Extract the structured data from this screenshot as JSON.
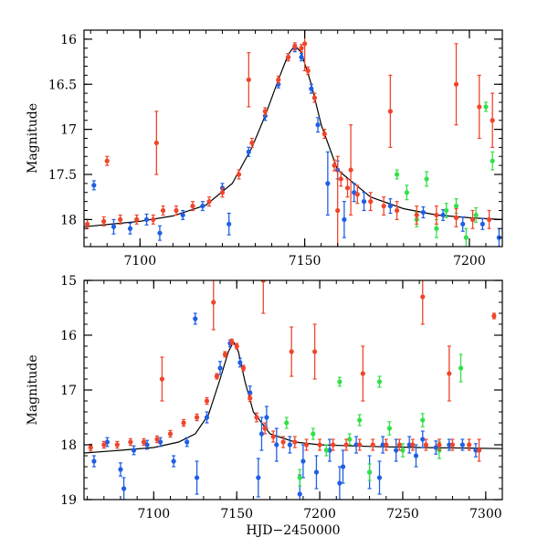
{
  "colors": {
    "blue": "#1f5fe6",
    "red": "#f0452b",
    "green": "#33e04a",
    "model": "#000000",
    "frame": "#000000"
  },
  "chart_data": [
    {
      "type": "scatter",
      "title": "",
      "xlabel": "",
      "ylabel": "Magnitude",
      "xlim": [
        7083,
        7210
      ],
      "ylim": [
        18.3,
        15.9
      ],
      "y_inverted": true,
      "xticks": [
        7100,
        7150,
        7200
      ],
      "xtick_labels": [
        "7100",
        "7150",
        "7200"
      ],
      "yticks": [
        16,
        16.5,
        17,
        17.5,
        18
      ],
      "ytick_labels": [
        "16",
        "16.5",
        "17",
        "17.5",
        "18"
      ],
      "x_minor_step": 5,
      "y_minor_step": 0.1,
      "grid": false,
      "model_curve": {
        "name": "model",
        "color": "model",
        "x": [
          7083,
          7100,
          7110,
          7120,
          7128,
          7134,
          7138,
          7142,
          7145,
          7147,
          7149,
          7152,
          7155,
          7160,
          7170,
          7180,
          7190,
          7200,
          7210
        ],
        "y": [
          18.08,
          18.02,
          17.96,
          17.84,
          17.6,
          17.2,
          16.85,
          16.45,
          16.17,
          16.07,
          16.15,
          16.5,
          16.95,
          17.45,
          17.75,
          17.88,
          17.95,
          17.98,
          18.0
        ]
      },
      "series": [
        {
          "name": "blue",
          "color": "blue",
          "x": [
            7086,
            7092,
            7097,
            7102,
            7106,
            7113,
            7119,
            7125,
            7127,
            7133,
            7138,
            7142,
            7145,
            7147,
            7149,
            7152,
            7154,
            7157,
            7160,
            7162,
            7165,
            7168,
            7176,
            7186,
            7192,
            7198,
            7204,
            7209
          ],
          "y": [
            17.62,
            18.08,
            18.1,
            18.0,
            18.15,
            17.95,
            17.85,
            17.65,
            18.05,
            17.25,
            16.85,
            16.5,
            16.2,
            16.1,
            16.2,
            16.55,
            16.95,
            17.6,
            17.45,
            18.0,
            17.7,
            17.8,
            17.85,
            17.92,
            17.95,
            18.05,
            18.05,
            18.2
          ],
          "yerr": [
            0.05,
            0.08,
            0.06,
            0.06,
            0.08,
            0.05,
            0.05,
            0.05,
            0.12,
            0.05,
            0.05,
            0.04,
            0.04,
            0.04,
            0.04,
            0.05,
            0.08,
            0.35,
            0.1,
            0.2,
            0.1,
            0.1,
            0.08,
            0.06,
            0.06,
            0.08,
            0.06,
            0.1
          ]
        },
        {
          "name": "red",
          "color": "red",
          "x": [
            7084,
            7089,
            7094,
            7099,
            7104,
            7107,
            7111,
            7116,
            7121,
            7125,
            7130,
            7134,
            7138,
            7142,
            7145,
            7147,
            7149,
            7151,
            7153,
            7156,
            7159,
            7161,
            7163,
            7166,
            7170,
            7174,
            7178,
            7184,
            7190,
            7196,
            7201,
            7206,
            7090,
            7105,
            7133,
            7150,
            7160,
            7164,
            7176,
            7196,
            7203,
            7207
          ],
          "y": [
            18.05,
            18.02,
            18.0,
            18.0,
            18.0,
            17.9,
            17.9,
            17.85,
            17.8,
            17.7,
            17.5,
            17.15,
            16.8,
            16.45,
            16.2,
            16.08,
            16.1,
            16.35,
            16.65,
            17.05,
            17.4,
            17.55,
            17.65,
            17.72,
            17.8,
            17.85,
            17.9,
            17.95,
            17.95,
            17.98,
            18.0,
            18.0,
            17.35,
            17.15,
            16.45,
            16.05,
            17.9,
            17.45,
            16.8,
            16.5,
            16.75,
            16.9
          ],
          "yerr": [
            0.05,
            0.05,
            0.05,
            0.05,
            0.05,
            0.05,
            0.05,
            0.05,
            0.05,
            0.05,
            0.05,
            0.05,
            0.04,
            0.04,
            0.04,
            0.04,
            0.04,
            0.04,
            0.05,
            0.05,
            0.06,
            0.08,
            0.1,
            0.1,
            0.1,
            0.1,
            0.1,
            0.1,
            0.1,
            0.1,
            0.1,
            0.1,
            0.05,
            0.35,
            0.3,
            0.3,
            0.6,
            0.5,
            0.4,
            0.45,
            0.35,
            0.3
          ]
        },
        {
          "name": "green",
          "color": "green",
          "x": [
            7178,
            7181,
            7184,
            7187,
            7190,
            7193,
            7196,
            7199,
            7202,
            7205,
            7207
          ],
          "y": [
            17.5,
            17.7,
            18.0,
            17.55,
            18.1,
            17.9,
            17.85,
            18.2,
            17.95,
            16.75,
            17.35
          ],
          "yerr": [
            0.05,
            0.08,
            0.08,
            0.08,
            0.1,
            0.08,
            0.08,
            0.1,
            0.08,
            0.05,
            0.1
          ]
        }
      ]
    },
    {
      "type": "scatter",
      "title": "",
      "xlabel": "HJD−2450000",
      "ylabel": "Magnitude",
      "xlim": [
        7058,
        7310
      ],
      "ylim": [
        19.0,
        15.0
      ],
      "y_inverted": true,
      "xticks": [
        7100,
        7150,
        7200,
        7250,
        7300
      ],
      "xtick_labels": [
        "7100",
        "7150",
        "7200",
        "7250",
        "7300"
      ],
      "yticks": [
        15,
        16,
        17,
        18,
        19
      ],
      "ytick_labels": [
        "15",
        "16",
        "17",
        "18",
        "19"
      ],
      "x_minor_step": 10,
      "y_minor_step": 0.2,
      "grid": false,
      "model_curve": {
        "name": "model",
        "color": "model",
        "x": [
          7058,
          7080,
          7100,
          7115,
          7125,
          7133,
          7140,
          7145,
          7148,
          7151,
          7155,
          7160,
          7170,
          7185,
          7200,
          7230,
          7260,
          7290,
          7310
        ],
        "y": [
          18.15,
          18.1,
          18.05,
          17.95,
          17.8,
          17.45,
          16.8,
          16.3,
          16.12,
          16.3,
          16.85,
          17.4,
          17.8,
          17.95,
          18.0,
          18.03,
          18.05,
          18.06,
          18.07
        ]
      },
      "series": [
        {
          "name": "blue",
          "color": "blue",
          "x": [
            7064,
            7072,
            7080,
            7088,
            7096,
            7104,
            7112,
            7120,
            7125,
            7132,
            7140,
            7146,
            7152,
            7158,
            7163,
            7168,
            7174,
            7182,
            7190,
            7198,
            7206,
            7214,
            7222,
            7230,
            7238,
            7246,
            7254,
            7262,
            7270,
            7278,
            7286,
            7294,
            7082,
            7126,
            7165,
            7188,
            7212,
            7236,
            7258
          ],
          "y": [
            18.3,
            17.95,
            18.45,
            18.1,
            18.0,
            17.95,
            18.3,
            17.95,
            15.7,
            17.5,
            16.6,
            16.15,
            16.5,
            17.05,
            18.6,
            17.5,
            18.0,
            18.0,
            18.3,
            18.5,
            18.1,
            18.4,
            18.0,
            18.5,
            18.0,
            18.1,
            18.0,
            17.9,
            18.05,
            18.0,
            18.0,
            18.1,
            18.8,
            18.6,
            17.8,
            18.9,
            18.7,
            18.6,
            18.2
          ],
          "yerr": [
            0.1,
            0.08,
            0.12,
            0.08,
            0.08,
            0.08,
            0.1,
            0.08,
            0.1,
            0.1,
            0.12,
            0.06,
            0.08,
            0.12,
            0.35,
            0.2,
            0.3,
            0.15,
            0.3,
            0.3,
            0.2,
            0.3,
            0.15,
            0.3,
            0.15,
            0.2,
            0.15,
            0.15,
            0.12,
            0.1,
            0.1,
            0.12,
            0.2,
            0.3,
            0.3,
            0.35,
            0.3,
            0.3,
            0.2
          ]
        },
        {
          "name": "red",
          "color": "red",
          "x": [
            7062,
            7070,
            7078,
            7086,
            7094,
            7102,
            7110,
            7118,
            7126,
            7132,
            7138,
            7143,
            7147,
            7150,
            7154,
            7158,
            7162,
            7167,
            7172,
            7178,
            7185,
            7192,
            7200,
            7208,
            7216,
            7224,
            7232,
            7240,
            7248,
            7256,
            7264,
            7272,
            7280,
            7290,
            7305,
            7105,
            7136,
            7166,
            7183,
            7197,
            7226,
            7262,
            7278,
            7296
          ],
          "y": [
            18.05,
            18.0,
            18.0,
            17.95,
            17.95,
            17.9,
            17.8,
            17.6,
            17.5,
            17.2,
            16.75,
            16.35,
            16.12,
            16.2,
            16.6,
            17.15,
            17.5,
            17.7,
            17.85,
            17.95,
            17.95,
            18.0,
            18.0,
            18.0,
            18.0,
            18.0,
            18.0,
            18.0,
            18.0,
            18.0,
            18.0,
            18.0,
            18.0,
            18.0,
            15.65,
            16.8,
            15.4,
            15.0,
            16.3,
            16.3,
            16.7,
            15.3,
            16.7,
            18.1
          ],
          "yerr": [
            0.06,
            0.06,
            0.06,
            0.06,
            0.06,
            0.06,
            0.06,
            0.06,
            0.06,
            0.06,
            0.05,
            0.05,
            0.05,
            0.05,
            0.05,
            0.06,
            0.08,
            0.1,
            0.1,
            0.1,
            0.1,
            0.1,
            0.1,
            0.1,
            0.1,
            0.1,
            0.1,
            0.1,
            0.1,
            0.1,
            0.1,
            0.1,
            0.1,
            0.1,
            0.05,
            0.4,
            0.5,
            0.6,
            0.45,
            0.5,
            0.5,
            0.5,
            0.5,
            0.2
          ]
        },
        {
          "name": "green",
          "color": "green",
          "x": [
            7180,
            7188,
            7196,
            7204,
            7212,
            7218,
            7224,
            7230,
            7236,
            7242,
            7250,
            7262,
            7272,
            7285
          ],
          "y": [
            17.6,
            18.6,
            17.8,
            18.1,
            16.85,
            17.9,
            17.55,
            18.5,
            16.85,
            17.7,
            18.1,
            17.55,
            18.1,
            16.6
          ],
          "yerr": [
            0.1,
            0.15,
            0.1,
            0.1,
            0.08,
            0.1,
            0.1,
            0.15,
            0.1,
            0.12,
            0.12,
            0.12,
            0.15,
            0.25
          ]
        }
      ]
    }
  ]
}
